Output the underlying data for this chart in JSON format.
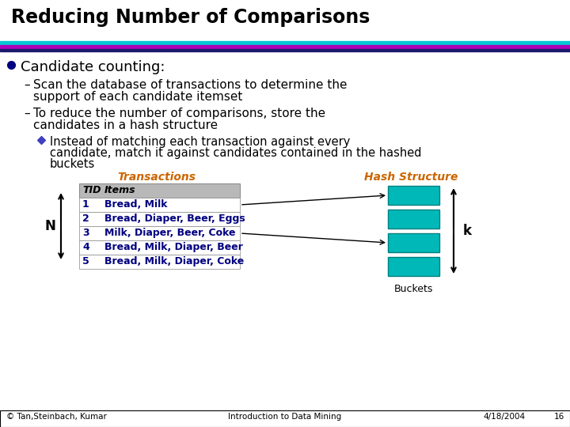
{
  "title": "Reducing Number of Comparisons",
  "title_fontsize": 17,
  "title_fontweight": "bold",
  "bg_color": "#ffffff",
  "separator_colors": [
    "#00c8d4",
    "#b000b8",
    "#1a1a6e"
  ],
  "bullet_color": "#000080",
  "sub_bullet_color": "#4040c0",
  "transactions_label_color": "#cc6600",
  "hash_label_color": "#cc6600",
  "table_header_bg": "#b8b8b8",
  "table_text_color": "#000080",
  "hash_bucket_color": "#00b8b8",
  "bullet_text": "Candidate counting:",
  "dash1_line1": "Scan the database of transactions to determine the",
  "dash1_line2": "support of each candidate itemset",
  "dash2_line1": "To reduce the number of comparisons, store the",
  "dash2_line2": "candidates in a hash structure",
  "sub_bullet_line1": "Instead of matching each transaction against every",
  "sub_bullet_line2": "candidate, match it against candidates contained in the hashed",
  "sub_bullet_line3": "buckets",
  "transactions_label": "Transactions",
  "hash_label": "Hash Structure",
  "table_headers": [
    "TID",
    "Items"
  ],
  "table_rows": [
    [
      "1",
      "Bread, Milk"
    ],
    [
      "2",
      "Bread, Diaper, Beer, Eggs"
    ],
    [
      "3",
      "Milk, Diaper, Beer, Coke"
    ],
    [
      "4",
      "Bread, Milk, Diaper, Beer"
    ],
    [
      "5",
      "Bread, Milk, Diaper, Coke"
    ]
  ],
  "buckets_label": "Buckets",
  "k_label": "k",
  "n_label": "N",
  "footer_left": "© Tan,Steinbach, Kumar",
  "footer_center": "Introduction to Data Mining",
  "footer_right": "4/18/2004",
  "footer_page": "16"
}
